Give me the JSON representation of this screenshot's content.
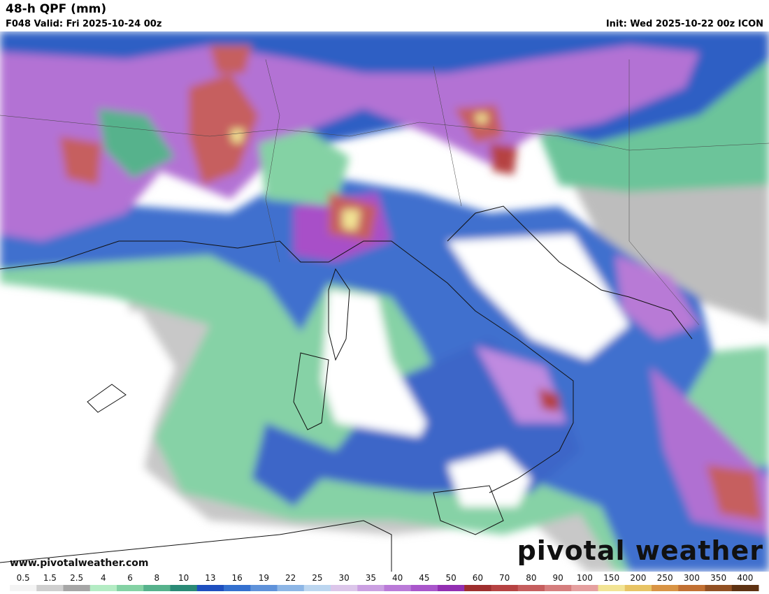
{
  "header": {
    "title": "48-h QPF (mm)",
    "valid": "F048 Valid: Fri 2025-10-24 00z",
    "init": "Init: Wed 2025-10-22 00z ICON"
  },
  "footer": {
    "website": "www.pivotalweather.com",
    "brand": "pivotal weather"
  },
  "colorbar": {
    "labels": [
      0.5,
      1.5,
      2.5,
      4,
      6,
      8,
      10,
      13,
      16,
      19,
      22,
      25,
      30,
      35,
      40,
      45,
      50,
      60,
      70,
      80,
      90,
      100,
      150,
      200,
      250,
      300,
      350,
      400
    ],
    "colors": [
      "#f4f4f4",
      "#cfcfcf",
      "#a6a6a6",
      "#b4ecc4",
      "#84d2a4",
      "#56b28c",
      "#2a8a76",
      "#1e4fbf",
      "#3470cf",
      "#5f92da",
      "#8db6e6",
      "#bcd6f0",
      "#dcc6ea",
      "#cba0e2",
      "#ba7ad8",
      "#a956cb",
      "#922fb2",
      "#9e2e2e",
      "#b64242",
      "#c65e5e",
      "#d67e7e",
      "#e6a0a0",
      "#f2e494",
      "#e8c464",
      "#d99444",
      "#c27032",
      "#925022",
      "#5e3212"
    ]
  }
}
